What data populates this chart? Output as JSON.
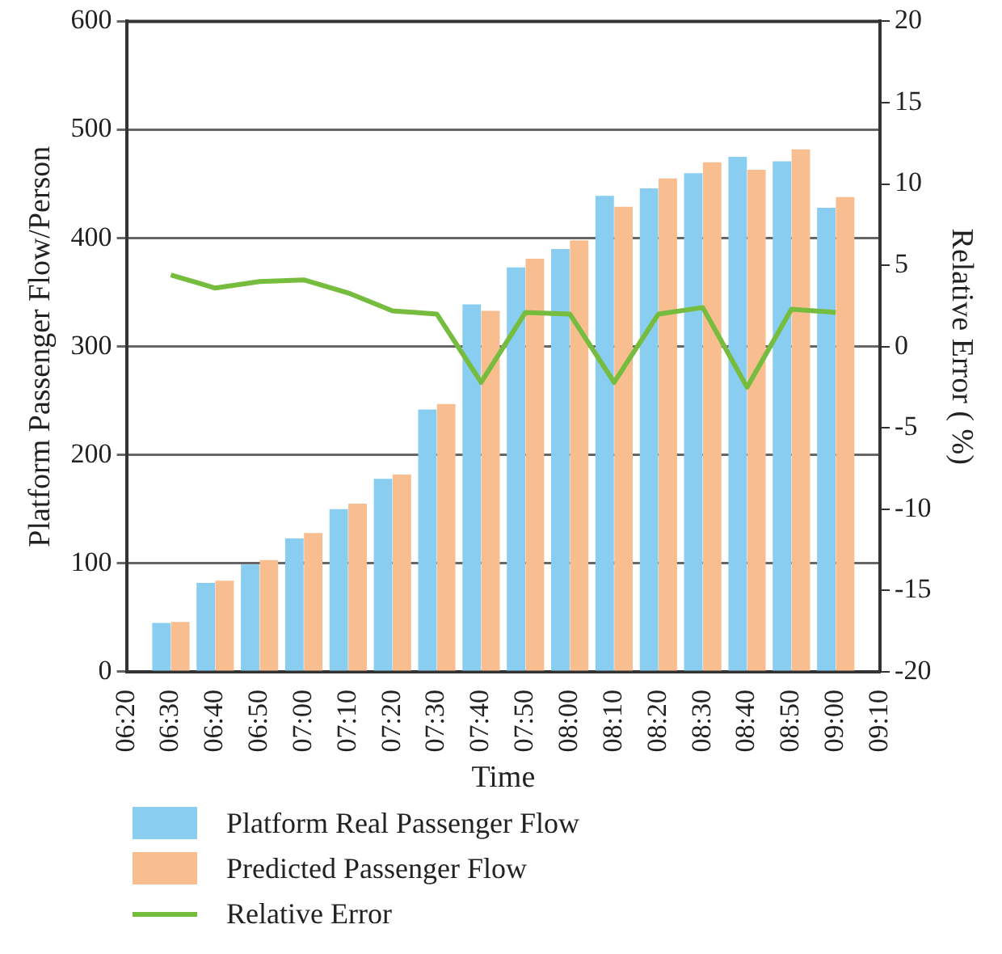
{
  "chart_data": {
    "type": "bar",
    "xlabel": "Time",
    "ylabel": "Platform Passenger Flow/Person",
    "y2label": "Relative Error ( %)",
    "categories": [
      "06:20",
      "06:30",
      "06:40",
      "06:50",
      "07:00",
      "07:10",
      "07:20",
      "07:30",
      "07:40",
      "07:50",
      "08:00",
      "08:10",
      "08:20",
      "08:30",
      "08:40",
      "08:50",
      "09:00",
      "09:10"
    ],
    "series": [
      {
        "name": "Platform Real Passenger Flow",
        "color": "#89cdf0",
        "values": [
          null,
          45,
          82,
          99,
          123,
          150,
          178,
          242,
          339,
          373,
          390,
          439,
          446,
          460,
          475,
          471,
          428,
          null
        ]
      },
      {
        "name": "Predicted Passenger Flow",
        "color": "#f8be90",
        "values": [
          null,
          46,
          84,
          103,
          128,
          155,
          182,
          247,
          333,
          381,
          398,
          429,
          455,
          470,
          463,
          482,
          438,
          null
        ]
      },
      {
        "name": "Relative Error",
        "type": "line",
        "axis": "y2",
        "color": "#76bd3f",
        "values": [
          null,
          4.4,
          3.6,
          4.0,
          4.1,
          3.3,
          2.2,
          2.0,
          -2.2,
          2.1,
          2.0,
          -2.2,
          2.0,
          2.4,
          -2.5,
          2.3,
          2.1,
          null
        ]
      }
    ],
    "ylim": [
      0,
      600
    ],
    "yticks": [
      0,
      100,
      200,
      300,
      400,
      500,
      600
    ],
    "y2lim": [
      -20,
      20
    ],
    "y2ticks": [
      -20,
      -15,
      -10,
      -5,
      0,
      5,
      10,
      15,
      20
    ],
    "grid": "y",
    "legend": "bottom",
    "marker": "none",
    "line_style": "solid"
  }
}
